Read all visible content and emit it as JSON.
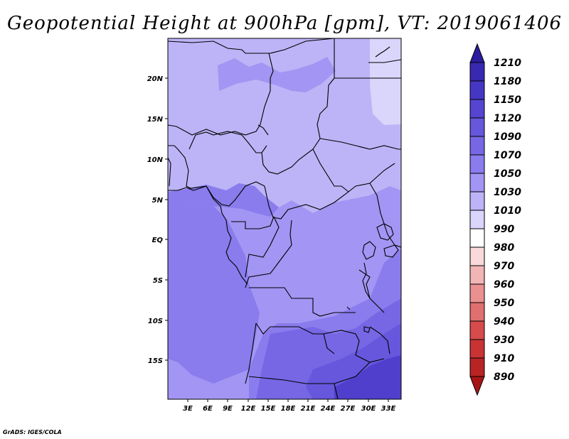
{
  "title": "Geopotential Height at 900hPa [gpm], VT: 2019061406",
  "credit": "GrADS: IGES/COLA",
  "map": {
    "lon_labels": [
      "3E",
      "6E",
      "9E",
      "12E",
      "15E",
      "18E",
      "21E",
      "24E",
      "27E",
      "30E",
      "33E"
    ],
    "lat_labels": [
      "20N",
      "15N",
      "10N",
      "5N",
      "EQ",
      "5S",
      "10S",
      "15S"
    ]
  },
  "colorbar": {
    "levels": [
      "1210",
      "1180",
      "1150",
      "1120",
      "1090",
      "1070",
      "1050",
      "1030",
      "1010",
      "990",
      "980",
      "970",
      "960",
      "950",
      "940",
      "930",
      "910",
      "890"
    ],
    "colors": [
      "#2b1d9e",
      "#3829b0",
      "#4636c4",
      "#5545d0",
      "#6657dc",
      "#7767e4",
      "#8a7ced",
      "#a395f3",
      "#bdb4f7",
      "#d9d5fb",
      "#ffffff",
      "#f9d9d9",
      "#f2b5b5",
      "#ea9090",
      "#e06f6f",
      "#d64b4b",
      "#c93333",
      "#b82424",
      "#a81515"
    ]
  },
  "field_colors": {
    "north_light": "#d9d5fb",
    "north": "#bdb4f7",
    "central": "#a395f3",
    "south_mid": "#8a7ced",
    "south_dark": "#7767e4",
    "southeast_darker": "#6657dc",
    "southeast_darkest": "#4f3fcc"
  }
}
